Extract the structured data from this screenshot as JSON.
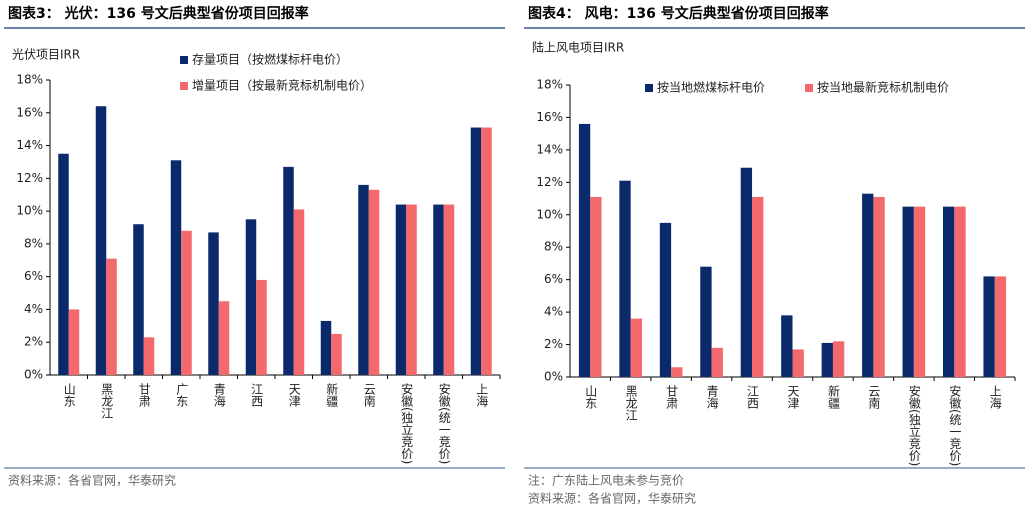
{
  "chart_data": [
    {
      "type": "bar",
      "title": "图表3： 光伏：136 号文后典型省份项目回报率",
      "y_label": "光伏项目IRR",
      "categories": [
        "山东",
        "黑龙江",
        "甘肃",
        "广东",
        "青海",
        "江西",
        "天津",
        "新疆",
        "云南",
        "安徽(独立竞价)",
        "安徽(统一竞价)",
        "上海"
      ],
      "series": [
        {
          "name": "存量项目（按燃煤标杆电价）",
          "color": "#0b2a6b",
          "values": [
            13.5,
            16.4,
            9.2,
            13.1,
            8.7,
            9.5,
            12.7,
            3.3,
            11.6,
            10.4,
            10.4,
            15.1
          ]
        },
        {
          "name": "增量项目（按最新竞标机制电价）",
          "color": "#f4696b",
          "values": [
            4.0,
            7.1,
            2.3,
            8.8,
            4.5,
            5.8,
            10.1,
            2.5,
            11.3,
            10.4,
            10.4,
            15.1
          ]
        }
      ],
      "ylim": [
        0,
        18
      ],
      "yticks": [
        {
          "value": 0,
          "label": "0%"
        },
        {
          "value": 2,
          "label": "2%"
        },
        {
          "value": 4,
          "label": "4%"
        },
        {
          "value": 6,
          "label": "6%"
        },
        {
          "value": 8,
          "label": "8%"
        },
        {
          "value": 10,
          "label": "10%"
        },
        {
          "value": 12,
          "label": "12%"
        },
        {
          "value": 14,
          "label": "14%"
        },
        {
          "value": 16,
          "label": "16%"
        },
        {
          "value": 18,
          "label": "18%"
        }
      ],
      "grid": false,
      "legend": "top-vertical",
      "notes": [
        "资料来源：各省官网，华泰研究"
      ]
    },
    {
      "type": "bar",
      "title": "图表4： 风电：136 号文后典型省份项目回报率",
      "y_label": "陆上风电项目IRR",
      "categories": [
        "山东",
        "黑龙江",
        "甘肃",
        "青海",
        "江西",
        "天津",
        "新疆",
        "云南",
        "安徽(独立竞价)",
        "安徽(统一竞价)",
        "上海"
      ],
      "series": [
        {
          "name": "按当地燃煤标杆电价",
          "color": "#0b2a6b",
          "values": [
            15.6,
            12.1,
            9.5,
            6.8,
            12.9,
            3.8,
            2.1,
            11.3,
            10.5,
            10.5,
            6.2
          ]
        },
        {
          "name": "按当地最新竞标机制电价",
          "color": "#f4696b",
          "values": [
            11.1,
            3.6,
            0.6,
            1.8,
            11.1,
            1.7,
            2.2,
            11.1,
            10.5,
            10.5,
            6.2
          ]
        }
      ],
      "ylim": [
        0,
        18
      ],
      "yticks": [
        {
          "value": 0,
          "label": "0%"
        },
        {
          "value": 2,
          "label": "2%"
        },
        {
          "value": 4,
          "label": "4%"
        },
        {
          "value": 6,
          "label": "6%"
        },
        {
          "value": 8,
          "label": "8%"
        },
        {
          "value": 10,
          "label": "10%"
        },
        {
          "value": 12,
          "label": "12%"
        },
        {
          "value": 14,
          "label": "14%"
        },
        {
          "value": 16,
          "label": "16%"
        },
        {
          "value": 18,
          "label": "18%"
        }
      ],
      "grid": false,
      "legend": "top-horizontal",
      "notes": [
        "注：广东陆上风电未参与竞价",
        "资料来源：各省官网，华泰研究"
      ]
    }
  ]
}
